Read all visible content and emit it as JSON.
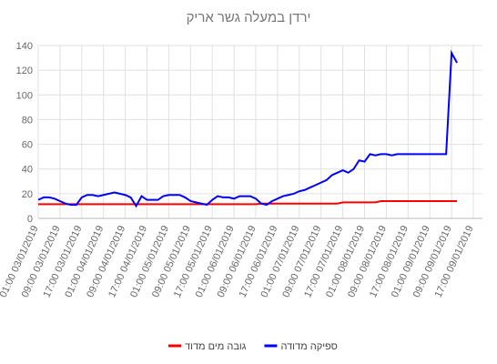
{
  "chart_data": {
    "type": "line",
    "title": "ירדן במעלה גשר אריק",
    "categories": [
      "01:00 03/01/2019",
      null,
      null,
      null,
      "09:00 03/01/2019",
      null,
      null,
      null,
      "17:00 03/01/2019",
      null,
      null,
      null,
      "01:00 04/01/2019",
      null,
      null,
      null,
      "09:00 04/01/2019",
      null,
      null,
      null,
      "17:00 04/01/2019",
      null,
      null,
      null,
      "01:00 05/01/2019",
      null,
      null,
      null,
      "09:00 05/01/2019",
      null,
      null,
      null,
      "17:00 05/01/2019",
      null,
      null,
      null,
      "01:00 06/01/2019",
      null,
      null,
      null,
      "09:00 06/01/2019",
      null,
      null,
      null,
      "17:00 06/01/2019",
      null,
      null,
      null,
      "01:00 07/01/2019",
      null,
      null,
      null,
      "09:00 07/01/2019",
      null,
      null,
      null,
      "17:00 07/01/2019",
      null,
      null,
      null,
      "01:00 08/01/2019",
      null,
      null,
      null,
      "09:00 08/01/2019",
      null,
      null,
      null,
      "17:00 08/01/2019",
      null,
      null,
      null,
      "01:00 09/01/2019",
      null,
      null,
      null,
      "09:00 09/01/2019",
      null,
      null,
      null,
      "17:00 09/01/2019"
    ],
    "series": [
      {
        "name": "גובה מים מדוד",
        "color": "#ff0000",
        "values": [
          11.5,
          11.5,
          11.5,
          11.5,
          11.5,
          11.5,
          11.5,
          11.5,
          11.5,
          11.5,
          11.5,
          11.5,
          11.5,
          11.5,
          11.5,
          11.5,
          11.5,
          11.5,
          11.5,
          11.5,
          11.5,
          11.5,
          11.5,
          11.5,
          11.5,
          11.5,
          11.5,
          11.5,
          11.5,
          11.5,
          11.5,
          11.5,
          11.5,
          11.5,
          11.5,
          11.5,
          11.5,
          11.5,
          11.5,
          11.5,
          11.5,
          12,
          12,
          12,
          12,
          12,
          12,
          12,
          12,
          12,
          12,
          12,
          12,
          12,
          12,
          12,
          13,
          13,
          13,
          13,
          13,
          13,
          13,
          14,
          14,
          14,
          14,
          14,
          14,
          14,
          14,
          14,
          14,
          14,
          14,
          14,
          14,
          14,
          null,
          null,
          null
        ]
      },
      {
        "name": "ספיקה מדודה",
        "color": "#0000ff",
        "values": [
          15,
          17,
          17,
          16,
          14,
          12,
          11,
          11,
          17,
          19,
          19,
          18,
          19,
          20,
          21,
          20,
          19,
          17,
          10,
          18,
          15,
          15,
          15,
          18,
          19,
          19,
          19,
          17,
          14,
          13,
          12,
          11,
          15,
          18,
          17,
          17,
          16,
          18,
          18,
          18,
          16,
          12,
          11,
          14,
          16,
          18,
          19,
          20,
          22,
          23,
          25,
          27,
          29,
          31,
          35,
          37,
          39,
          37,
          40,
          47,
          46,
          52,
          51,
          52,
          52,
          51,
          52,
          52,
          52,
          52,
          52,
          52,
          52,
          52,
          52,
          52,
          134,
          126,
          null,
          null,
          null
        ]
      }
    ],
    "ylim": [
      0,
      140
    ],
    "yticks": [
      0,
      20,
      40,
      60,
      80,
      100,
      120,
      140
    ],
    "grid": true,
    "legend": "bottom"
  }
}
